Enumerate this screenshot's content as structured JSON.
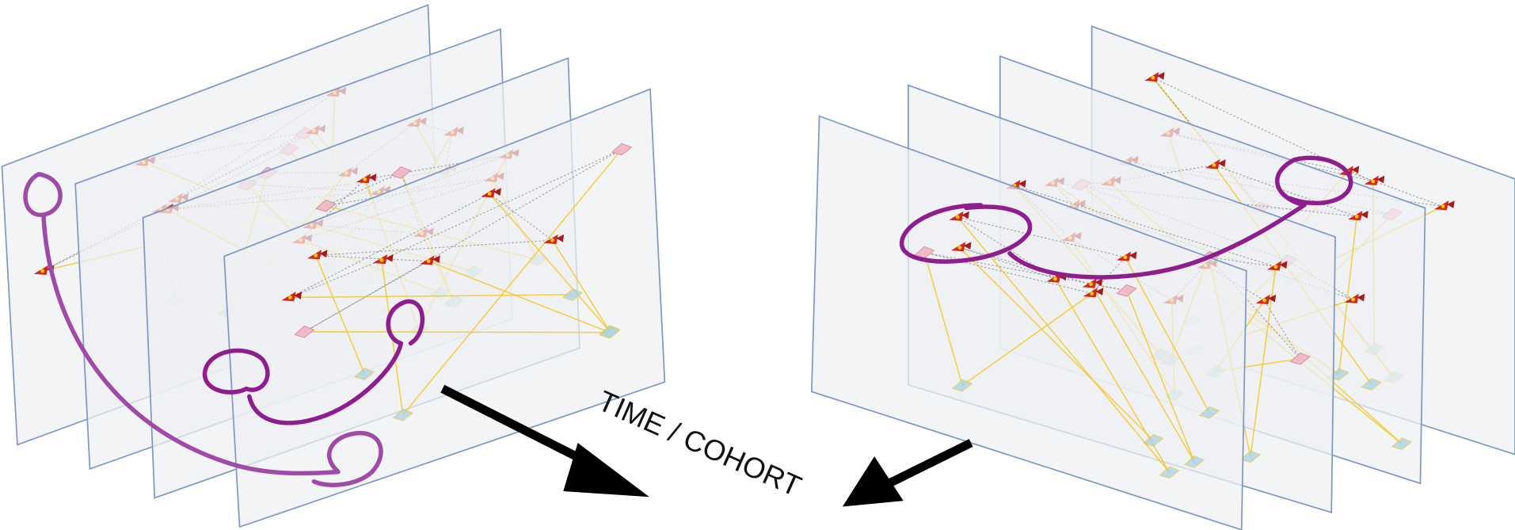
{
  "label": "TIME / COHORT"
}
